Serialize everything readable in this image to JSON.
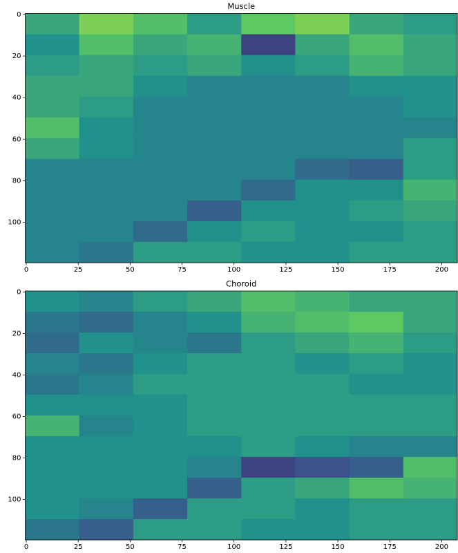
{
  "chart_data": [
    {
      "type": "heatmap",
      "title": "Muscle",
      "colormap": "viridis",
      "xlim": [
        -0.5,
        207.5
      ],
      "ylim": [
        119.5,
        -0.5
      ],
      "xticks": [
        0,
        25,
        50,
        75,
        100,
        125,
        150,
        175,
        200
      ],
      "yticks": [
        0,
        20,
        40,
        60,
        80,
        100
      ],
      "z": [
        [
          0.6,
          0.8,
          0.7,
          0.55,
          0.75,
          0.8,
          0.6,
          0.55
        ],
        [
          0.5,
          0.7,
          0.6,
          0.65,
          0.2,
          0.6,
          0.7,
          0.6
        ],
        [
          0.55,
          0.6,
          0.55,
          0.6,
          0.5,
          0.55,
          0.65,
          0.6
        ],
        [
          0.6,
          0.6,
          0.5,
          0.45,
          0.45,
          0.45,
          0.5,
          0.5
        ],
        [
          0.6,
          0.55,
          0.45,
          0.45,
          0.45,
          0.45,
          0.45,
          0.5
        ],
        [
          0.7,
          0.5,
          0.45,
          0.45,
          0.45,
          0.45,
          0.45,
          0.45
        ],
        [
          0.6,
          0.5,
          0.45,
          0.45,
          0.45,
          0.45,
          0.45,
          0.55
        ],
        [
          0.45,
          0.45,
          0.45,
          0.45,
          0.45,
          0.35,
          0.3,
          0.55
        ],
        [
          0.45,
          0.45,
          0.45,
          0.45,
          0.35,
          0.5,
          0.5,
          0.65
        ],
        [
          0.45,
          0.45,
          0.45,
          0.3,
          0.5,
          0.5,
          0.55,
          0.6
        ],
        [
          0.45,
          0.45,
          0.35,
          0.5,
          0.55,
          0.5,
          0.5,
          0.55
        ],
        [
          0.45,
          0.4,
          0.55,
          0.55,
          0.5,
          0.5,
          0.55,
          0.55
        ]
      ]
    },
    {
      "type": "heatmap",
      "title": "Choroid",
      "colormap": "viridis",
      "xlim": [
        -0.5,
        207.5
      ],
      "ylim": [
        119.5,
        -0.5
      ],
      "xticks": [
        0,
        25,
        50,
        75,
        100,
        125,
        150,
        175,
        200
      ],
      "yticks": [
        0,
        20,
        40,
        60,
        80,
        100
      ],
      "z": [
        [
          0.5,
          0.45,
          0.55,
          0.6,
          0.7,
          0.65,
          0.6,
          0.6
        ],
        [
          0.4,
          0.35,
          0.45,
          0.5,
          0.65,
          0.7,
          0.75,
          0.6
        ],
        [
          0.35,
          0.5,
          0.45,
          0.4,
          0.55,
          0.6,
          0.65,
          0.55
        ],
        [
          0.45,
          0.4,
          0.5,
          0.55,
          0.55,
          0.5,
          0.55,
          0.5
        ],
        [
          0.4,
          0.45,
          0.55,
          0.55,
          0.55,
          0.55,
          0.5,
          0.5
        ],
        [
          0.5,
          0.5,
          0.5,
          0.55,
          0.55,
          0.55,
          0.55,
          0.55
        ],
        [
          0.65,
          0.45,
          0.5,
          0.55,
          0.55,
          0.55,
          0.55,
          0.55
        ],
        [
          0.5,
          0.5,
          0.5,
          0.5,
          0.55,
          0.5,
          0.45,
          0.45
        ],
        [
          0.5,
          0.5,
          0.5,
          0.45,
          0.2,
          0.25,
          0.3,
          0.7
        ],
        [
          0.5,
          0.5,
          0.5,
          0.3,
          0.55,
          0.6,
          0.7,
          0.65
        ],
        [
          0.5,
          0.45,
          0.3,
          0.55,
          0.55,
          0.5,
          0.55,
          0.55
        ],
        [
          0.4,
          0.3,
          0.55,
          0.55,
          0.5,
          0.5,
          0.55,
          0.55
        ]
      ]
    }
  ]
}
